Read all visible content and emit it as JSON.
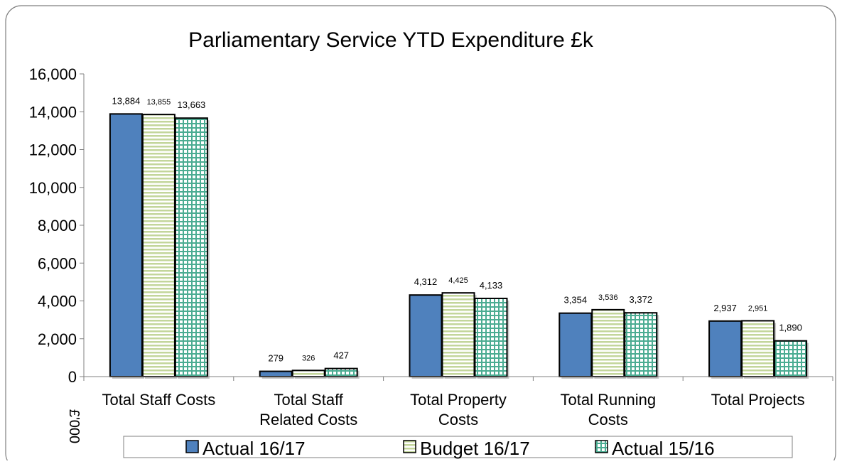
{
  "chart_data": {
    "type": "bar",
    "title": "Parliamentary Service YTD Expenditure  £k",
    "ylabel": "£'000",
    "xlabel": "",
    "ylim": [
      0,
      16000
    ],
    "yticks": [
      "0",
      "2,000",
      "4,000",
      "6,000",
      "8,000",
      "10,000",
      "12,000",
      "14,000",
      "16,000"
    ],
    "categories": [
      [
        "Total Staff Costs"
      ],
      [
        "Total Staff",
        "Related Costs"
      ],
      [
        "Total Property",
        "Costs"
      ],
      [
        "Total Running",
        "Costs"
      ],
      [
        "Total Projects"
      ]
    ],
    "series": [
      {
        "name": "Actual 16/17",
        "values": [
          13884,
          279,
          4312,
          3354,
          2937
        ],
        "labels": [
          "13,884",
          "279",
          "4,312",
          "3,354",
          "2,937"
        ],
        "color": "#4f81bd",
        "pattern": "solid"
      },
      {
        "name": "Budget 16/17",
        "values": [
          13855,
          326,
          4425,
          3536,
          2951
        ],
        "labels": [
          "13,855",
          "326",
          "4,425",
          "3,536",
          "2,951"
        ],
        "color": "#c3d69b",
        "pattern": "horizontal-lines"
      },
      {
        "name": "Actual 15/16",
        "values": [
          13663,
          427,
          4133,
          3372,
          1890
        ],
        "labels": [
          "13,663",
          "427",
          "4,133",
          "3,372",
          "1,890"
        ],
        "color": "#4bac92",
        "pattern": "grid"
      }
    ],
    "legend_position": "bottom",
    "grid": false
  }
}
